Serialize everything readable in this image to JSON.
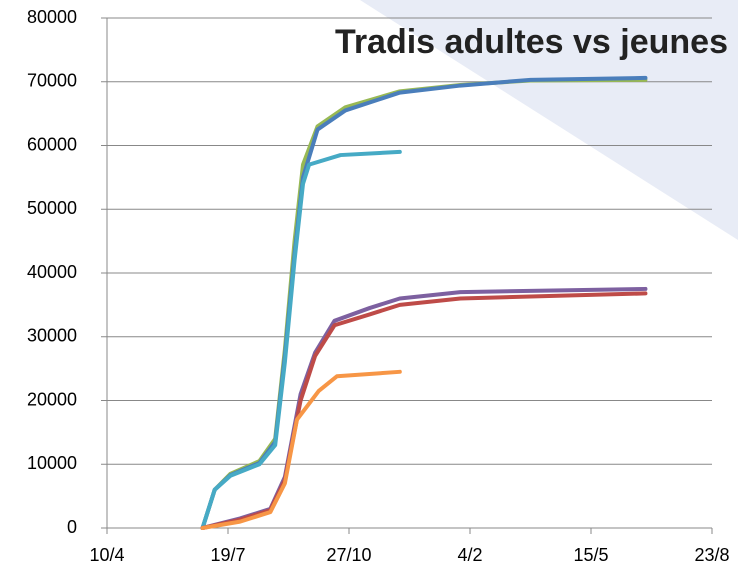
{
  "chart_data": {
    "type": "line",
    "title": "Tradis adultes vs jeunes",
    "xlim": [
      0,
      500
    ],
    "xticks": [
      {
        "value": 0,
        "label": "10/4"
      },
      {
        "value": 100,
        "label": "19/7"
      },
      {
        "value": 200,
        "label": "27/10"
      },
      {
        "value": 300,
        "label": "4/2"
      },
      {
        "value": 400,
        "label": "15/5"
      },
      {
        "value": 500,
        "label": "23/8"
      }
    ],
    "ylim": [
      0,
      80000
    ],
    "yticks": [
      0,
      10000,
      20000,
      30000,
      40000,
      50000,
      60000,
      70000,
      80000
    ],
    "grid": true,
    "series": [
      {
        "color": "#98b954",
        "x": [
          79,
          89,
          102,
          126,
          139,
          147,
          155,
          162,
          174,
          197,
          242,
          292,
          350,
          445
        ],
        "values": [
          0,
          6000,
          8500,
          10500,
          14000,
          28000,
          45000,
          57000,
          63000,
          66000,
          68500,
          69500,
          70200,
          70300
        ]
      },
      {
        "color": "#4a7ebb",
        "x": [
          79,
          89,
          102,
          126,
          139,
          147,
          155,
          162,
          174,
          197,
          242,
          292,
          350,
          445
        ],
        "values": [
          0,
          6000,
          8300,
          10200,
          13500,
          27000,
          43000,
          55000,
          62500,
          65500,
          68300,
          69400,
          70300,
          70600
        ]
      },
      {
        "color": "#46aac5",
        "x": [
          79,
          89,
          102,
          126,
          139,
          147,
          155,
          162,
          167,
          193,
          242
        ],
        "values": [
          0,
          6000,
          8200,
          10000,
          13000,
          26000,
          42000,
          54000,
          57000,
          58500,
          59000
        ]
      },
      {
        "color": "#7d60a0",
        "x": [
          79,
          110,
          135,
          147,
          160,
          172,
          188,
          217,
          242,
          292,
          445
        ],
        "values": [
          0,
          1500,
          3000,
          8000,
          21000,
          27500,
          32500,
          34500,
          36000,
          37000,
          37500
        ]
      },
      {
        "color": "#be4b48",
        "x": [
          79,
          110,
          135,
          147,
          160,
          172,
          188,
          217,
          242,
          292,
          445
        ],
        "values": [
          0,
          1300,
          2800,
          7500,
          20000,
          27000,
          31800,
          33500,
          35000,
          36000,
          36800
        ]
      },
      {
        "color": "#f79646",
        "x": [
          79,
          110,
          135,
          147,
          157,
          175,
          190,
          242
        ],
        "values": [
          0,
          1000,
          2500,
          7000,
          17000,
          21500,
          23800,
          24500
        ]
      }
    ]
  }
}
